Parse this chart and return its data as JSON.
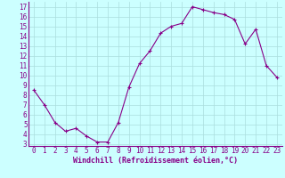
{
  "x": [
    0,
    1,
    2,
    3,
    4,
    5,
    6,
    7,
    8,
    9,
    10,
    11,
    12,
    13,
    14,
    15,
    16,
    17,
    18,
    19,
    20,
    21,
    22,
    23
  ],
  "y": [
    8.5,
    7.0,
    5.2,
    4.3,
    4.6,
    3.8,
    3.2,
    3.2,
    5.2,
    8.8,
    11.2,
    12.5,
    14.3,
    15.0,
    15.3,
    17.0,
    16.7,
    16.4,
    16.2,
    15.7,
    13.2,
    14.7,
    11.0,
    9.8
  ],
  "xlim": [
    -0.5,
    23.5
  ],
  "ylim": [
    2.8,
    17.5
  ],
  "yticks": [
    3,
    4,
    5,
    6,
    7,
    8,
    9,
    10,
    11,
    12,
    13,
    14,
    15,
    16,
    17
  ],
  "xticks": [
    0,
    1,
    2,
    3,
    4,
    5,
    6,
    7,
    8,
    9,
    10,
    11,
    12,
    13,
    14,
    15,
    16,
    17,
    18,
    19,
    20,
    21,
    22,
    23
  ],
  "line_color": "#880088",
  "marker": "+",
  "bg_color": "#ccffff",
  "grid_color": "#aadddd",
  "xlabel": "Windchill (Refroidissement éolien,°C)",
  "axis_label_color": "#880088",
  "tick_label_color": "#880088",
  "xlabel_fontsize": 6.0,
  "tick_fontsize": 5.5
}
